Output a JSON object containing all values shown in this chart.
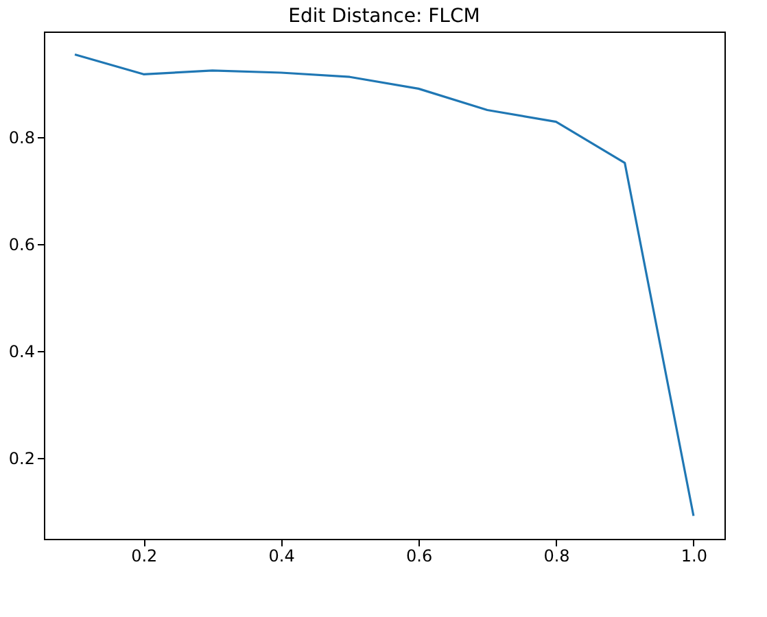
{
  "chart_data": {
    "type": "line",
    "title": "Edit Distance: FLCM",
    "x": [
      0.1,
      0.2,
      0.3,
      0.4,
      0.5,
      0.6,
      0.7,
      0.8,
      0.9,
      1.0
    ],
    "series": [
      {
        "color": "#1f77b4",
        "values": [
          0.955,
          0.918,
          0.925,
          0.921,
          0.913,
          0.891,
          0.851,
          0.829,
          0.752,
          0.091
        ]
      }
    ],
    "xlim": [
      0.055,
      1.045
    ],
    "xticks": [
      0.2,
      0.4,
      0.6,
      0.8,
      {
        "value": 1.0,
        "label": "1.0"
      }
    ],
    "ylim": [
      0.048,
      0.998
    ],
    "yticks": [
      0.2,
      0.4,
      0.6,
      0.8
    ],
    "grid": false
  }
}
